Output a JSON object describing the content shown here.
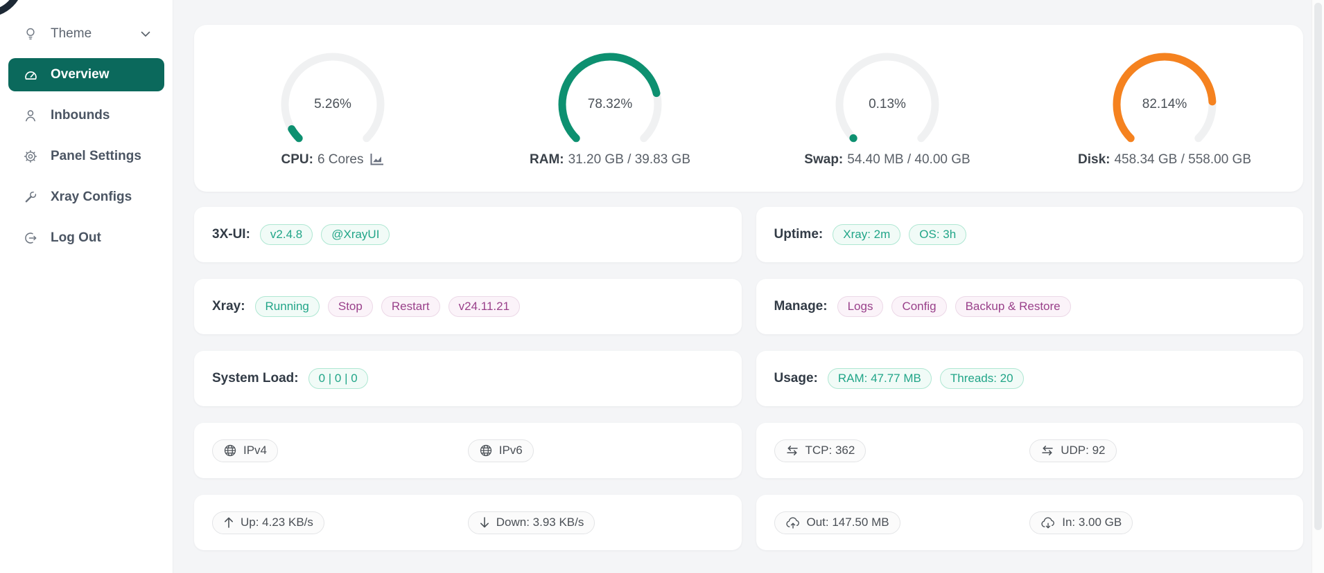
{
  "colors": {
    "primary": "#0b695c",
    "gauge_teal": "#0d9070",
    "gauge_orange": "#f5821f",
    "tag_teal": "#21a588",
    "tag_pink": "#99408a"
  },
  "sidebar": {
    "items": [
      {
        "id": "theme",
        "label": "Theme",
        "icon": "lightbulb-icon",
        "trailing_icon": "chevron-down-icon",
        "selected": false
      },
      {
        "id": "overview",
        "label": "Overview",
        "icon": "dashboard-icon",
        "selected": true
      },
      {
        "id": "inbounds",
        "label": "Inbounds",
        "icon": "user-icon",
        "selected": false
      },
      {
        "id": "panel-settings",
        "label": "Panel Settings",
        "icon": "gear-icon",
        "selected": false
      },
      {
        "id": "xray-configs",
        "label": "Xray Configs",
        "icon": "wrench-icon",
        "selected": false
      },
      {
        "id": "log-out",
        "label": "Log Out",
        "icon": "logout-icon",
        "selected": false
      }
    ]
  },
  "gauges": [
    {
      "id": "cpu",
      "percent": 5.26,
      "percent_label": "5.26%",
      "color": "#0d9070",
      "label_bold": "CPU:",
      "label_rest": "6 Cores",
      "chart_icon": true
    },
    {
      "id": "ram",
      "percent": 78.32,
      "percent_label": "78.32%",
      "color": "#0d9070",
      "label_bold": "RAM:",
      "label_rest": "31.20 GB / 39.83 GB",
      "chart_icon": false
    },
    {
      "id": "swap",
      "percent": 0.13,
      "percent_label": "0.13%",
      "color": "#0d9070",
      "label_bold": "Swap:",
      "label_rest": "54.40 MB / 40.00 GB",
      "chart_icon": false
    },
    {
      "id": "disk",
      "percent": 82.14,
      "percent_label": "82.14%",
      "color": "#f5821f",
      "label_bold": "Disk:",
      "label_rest": "458.34 GB / 558.00 GB",
      "chart_icon": false
    }
  ],
  "cards": [
    {
      "id": "panel-version",
      "type": "tags",
      "label": "3X-UI:",
      "tags": [
        {
          "text": "v2.4.8",
          "style": "teal",
          "interactable": true
        },
        {
          "text": "@XrayUI",
          "style": "teal",
          "interactable": true
        }
      ]
    },
    {
      "id": "uptime",
      "type": "tags",
      "label": "Uptime:",
      "tags": [
        {
          "text": "Xray: 2m",
          "style": "teal",
          "interactable": false
        },
        {
          "text": "OS: 3h",
          "style": "teal",
          "interactable": false
        }
      ]
    },
    {
      "id": "xray-status",
      "type": "tags",
      "label": "Xray:",
      "tags": [
        {
          "text": "Running",
          "style": "teal",
          "interactable": false
        },
        {
          "text": "Stop",
          "style": "pink",
          "interactable": true
        },
        {
          "text": "Restart",
          "style": "pink",
          "interactable": true
        },
        {
          "text": "v24.11.21",
          "style": "pink",
          "interactable": true
        }
      ]
    },
    {
      "id": "manage",
      "type": "tags",
      "label": "Manage:",
      "tags": [
        {
          "text": "Logs",
          "style": "pink",
          "interactable": true
        },
        {
          "text": "Config",
          "style": "pink",
          "interactable": true
        },
        {
          "text": "Backup & Restore",
          "style": "pink",
          "interactable": true
        }
      ]
    },
    {
      "id": "system-load",
      "type": "tags",
      "label": "System Load:",
      "tags": [
        {
          "text": "0 | 0 | 0",
          "style": "teal",
          "interactable": false
        }
      ]
    },
    {
      "id": "usage",
      "type": "tags",
      "label": "Usage:",
      "tags": [
        {
          "text": "RAM: 47.77 MB",
          "style": "teal",
          "interactable": true
        },
        {
          "text": "Threads: 20",
          "style": "teal",
          "interactable": false
        }
      ]
    },
    {
      "id": "ip-addresses",
      "type": "pills",
      "pills": [
        {
          "text": "IPv4",
          "icon": "globe-icon",
          "interactable": true
        },
        {
          "text": "IPv6",
          "icon": "globe-icon",
          "interactable": true
        }
      ]
    },
    {
      "id": "connections",
      "type": "pills",
      "pills": [
        {
          "text": "TCP: 362",
          "icon": "swap-arrows-icon",
          "interactable": false
        },
        {
          "text": "UDP: 92",
          "icon": "swap-arrows-icon",
          "interactable": false
        }
      ]
    },
    {
      "id": "network-speed",
      "type": "pills",
      "pills": [
        {
          "text": "Up: 4.23 KB/s",
          "icon": "arrow-up-icon",
          "interactable": false
        },
        {
          "text": "Down: 3.93 KB/s",
          "icon": "arrow-down-icon",
          "interactable": false
        }
      ]
    },
    {
      "id": "traffic-total",
      "type": "pills",
      "pills": [
        {
          "text": "Out: 147.50 MB",
          "icon": "cloud-upload-icon",
          "interactable": false
        },
        {
          "text": "In: 3.00 GB",
          "icon": "cloud-download-icon",
          "interactable": false
        }
      ]
    }
  ]
}
